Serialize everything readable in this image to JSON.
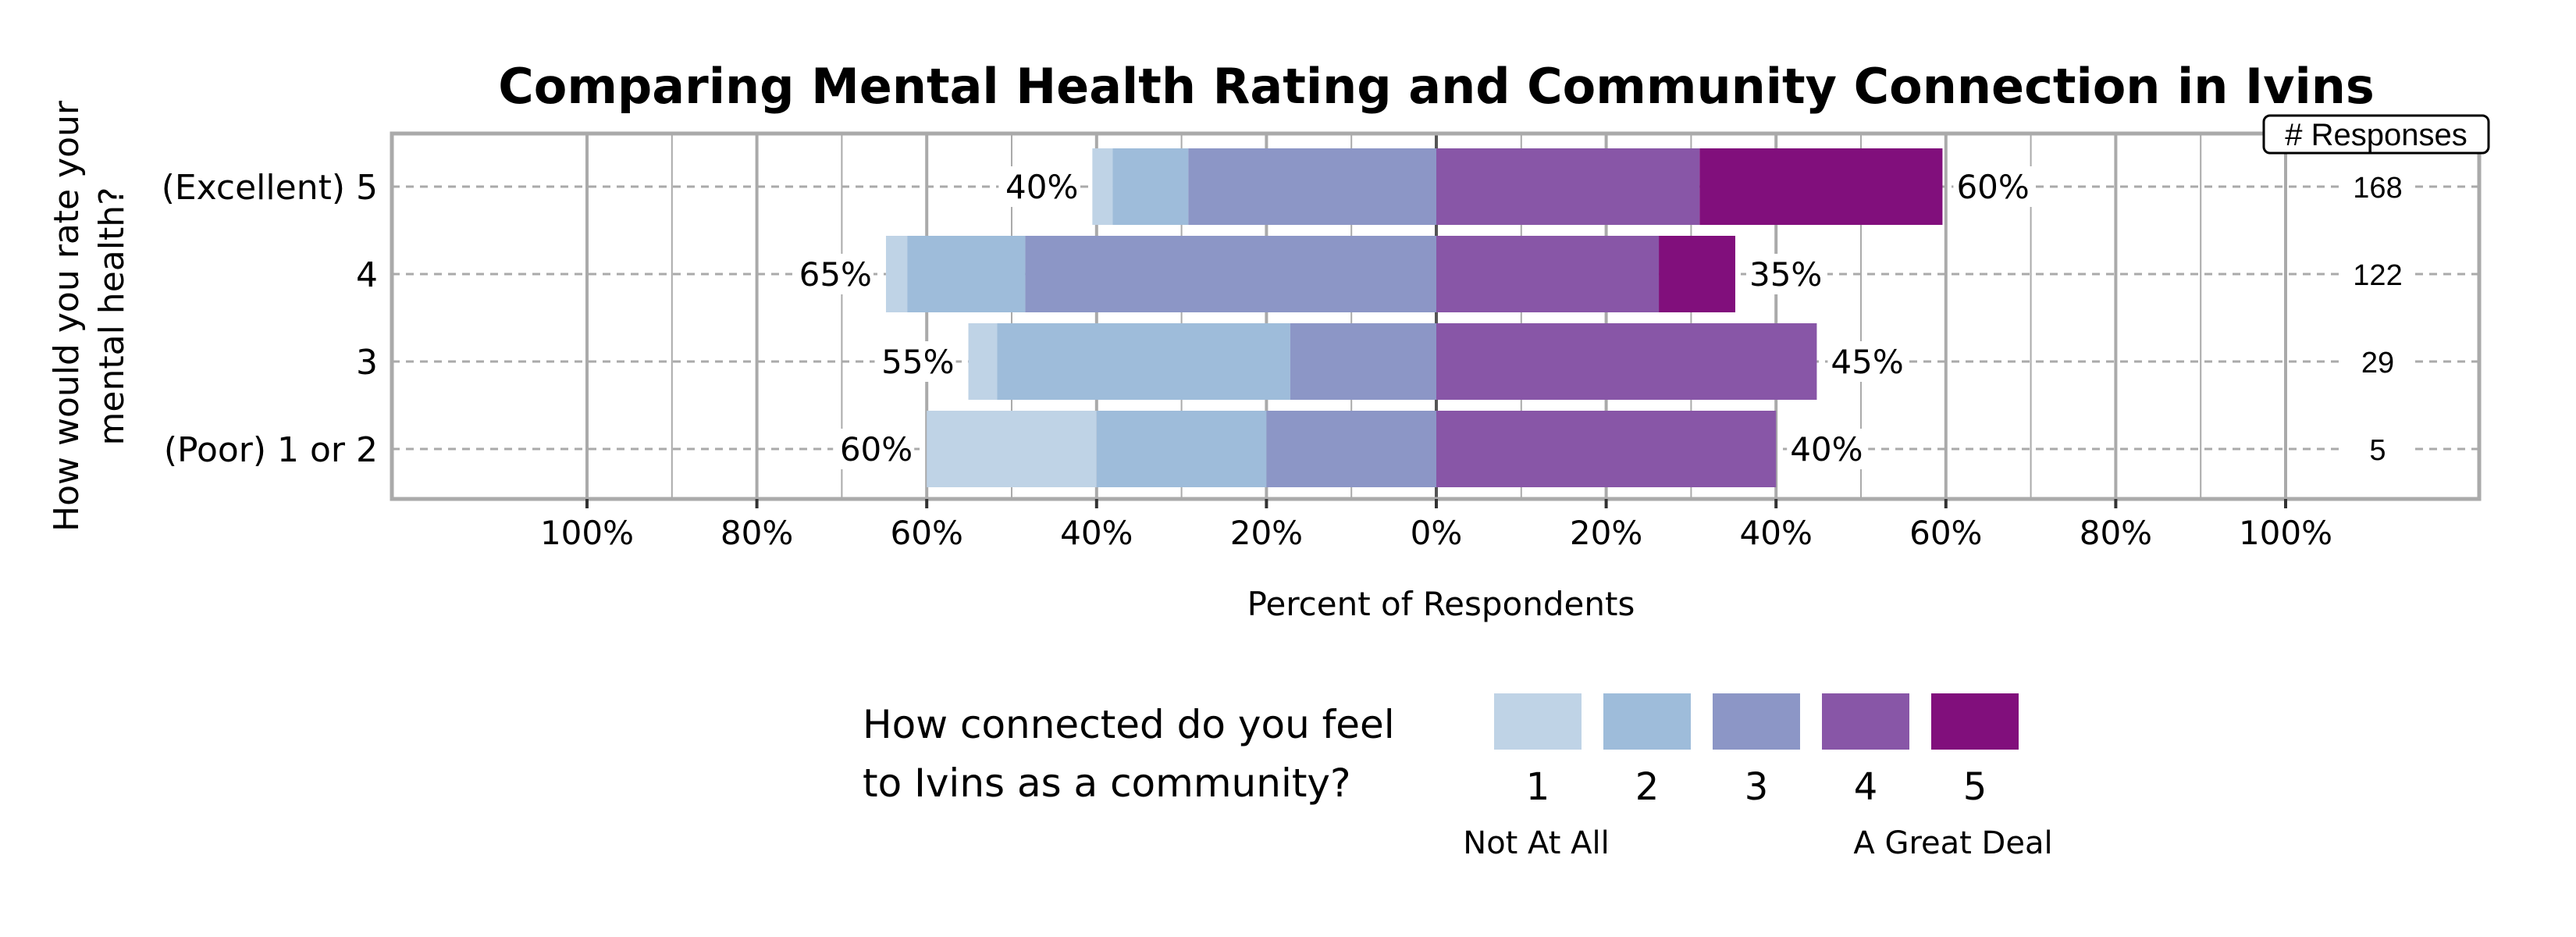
{
  "chart_data": {
    "type": "bar",
    "orientation": "horizontal-diverging-stacked",
    "title": "Comparing Mental Health Rating and Community Connection in Ivins",
    "xlabel": "Percent of Respondents",
    "ylabel": "How would you rate your mental health?",
    "xlim": [
      -123,
      123
    ],
    "x_ticks": [
      -100,
      -80,
      -60,
      -40,
      -20,
      0,
      20,
      40,
      60,
      80,
      100
    ],
    "x_tick_labels": [
      "100%",
      "80%",
      "60%",
      "40%",
      "20%",
      "0%",
      "20%",
      "40%",
      "60%",
      "80%",
      "100%"
    ],
    "grid": true,
    "categories": [
      "(Excellent) 5",
      "4",
      "3",
      "(Poor) 1 or 2"
    ],
    "series": [
      {
        "name": "1",
        "color": "#bfd3e6",
        "values": [
          2.4,
          2.5,
          3.4,
          20.0
        ]
      },
      {
        "name": "2",
        "color": "#9ebcda",
        "values": [
          8.9,
          13.9,
          34.5,
          20.0
        ]
      },
      {
        "name": "3",
        "color": "#8c96c6",
        "values": [
          29.2,
          48.4,
          17.2,
          20.0
        ]
      },
      {
        "name": "4",
        "color": "#8856a7",
        "values": [
          31.0,
          26.2,
          44.8,
          40.0
        ]
      },
      {
        "name": "5",
        "color": "#810f7c",
        "values": [
          28.6,
          9.0,
          0.0,
          0.0
        ]
      }
    ],
    "negative_series_count": 3,
    "left_labels": [
      "40%",
      "65%",
      "55%",
      "60%"
    ],
    "right_labels": [
      "60%",
      "35%",
      "45%",
      "40%"
    ],
    "responses_header": "# Responses",
    "responses": [
      "168",
      "122",
      "29",
      "5"
    ],
    "legend": {
      "title_line1": "How connected do you feel",
      "title_line2": "to Ivins as a community?",
      "low_label": "Not At All",
      "high_label": "A Great Deal",
      "placement": "bottom"
    }
  }
}
